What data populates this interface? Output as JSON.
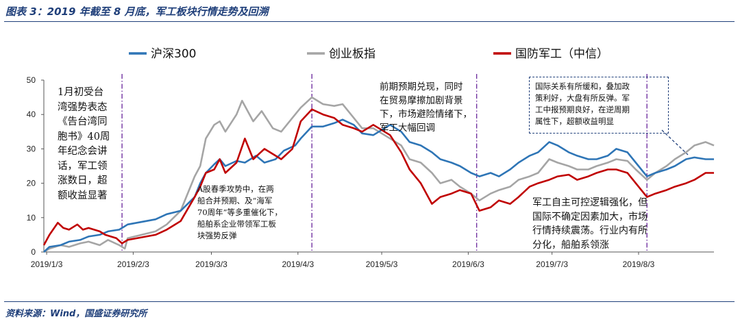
{
  "title": "图表 3：2019 年截至 8 月底，军工板块行情走势及回溯",
  "source": "资料来源：Wind，国盛证券研究所",
  "colors": {
    "hs300": "#2e75b6",
    "cyb": "#a5a5a5",
    "jungong": "#c00000",
    "accent": "#1f3f7a",
    "vline": "#7030a0"
  },
  "chart_data": {
    "type": "line",
    "title": "",
    "xlabel": "",
    "ylabel": "",
    "ylim": [
      0,
      50
    ],
    "yticks": [
      0,
      10,
      20,
      30,
      40,
      50
    ],
    "xlim": [
      "2019-01-02",
      "2019-08-30"
    ],
    "xticks": [
      {
        "label": "2019/1/3",
        "date": "2019-01-03"
      },
      {
        "label": "2019/2/3",
        "date": "2019-02-03"
      },
      {
        "label": "2019/3/3",
        "date": "2019-03-03"
      },
      {
        "label": "2019/4/3",
        "date": "2019-04-03"
      },
      {
        "label": "2019/5/3",
        "date": "2019-05-03"
      },
      {
        "label": "2019/6/3",
        "date": "2019-06-03"
      },
      {
        "label": "2019/7/3",
        "date": "2019-07-03"
      },
      {
        "label": "2019/8/3",
        "date": "2019-08-03"
      }
    ],
    "grid": false,
    "legend_position": "top",
    "event_lines": [
      "2019-01-30",
      "2019-04-08",
      "2019-06-06",
      "2019-08-06"
    ],
    "series": [
      {
        "name": "沪深300",
        "color": "#2e75b6",
        "points": [
          [
            "2019-01-02",
            0
          ],
          [
            "2019-01-04",
            1.5
          ],
          [
            "2019-01-08",
            2
          ],
          [
            "2019-01-11",
            3
          ],
          [
            "2019-01-15",
            3.5
          ],
          [
            "2019-01-18",
            4.5
          ],
          [
            "2019-01-22",
            5
          ],
          [
            "2019-01-25",
            6
          ],
          [
            "2019-01-29",
            6.5
          ],
          [
            "2019-01-31",
            7.5
          ],
          [
            "2019-02-01",
            8
          ],
          [
            "2019-02-11",
            9.5
          ],
          [
            "2019-02-15",
            11
          ],
          [
            "2019-02-20",
            12
          ],
          [
            "2019-02-25",
            16
          ],
          [
            "2019-02-27",
            20
          ],
          [
            "2019-03-01",
            23
          ],
          [
            "2019-03-04",
            25.5
          ],
          [
            "2019-03-06",
            27
          ],
          [
            "2019-03-08",
            25
          ],
          [
            "2019-03-12",
            26.5
          ],
          [
            "2019-03-15",
            26
          ],
          [
            "2019-03-19",
            28
          ],
          [
            "2019-03-22",
            26
          ],
          [
            "2019-03-26",
            27
          ],
          [
            "2019-03-29",
            29.5
          ],
          [
            "2019-04-02",
            31
          ],
          [
            "2019-04-04",
            33
          ],
          [
            "2019-04-08",
            36.5
          ],
          [
            "2019-04-12",
            36.5
          ],
          [
            "2019-04-16",
            37.5
          ],
          [
            "2019-04-19",
            38.5
          ],
          [
            "2019-04-23",
            37
          ],
          [
            "2019-04-26",
            34.5
          ],
          [
            "2019-04-30",
            34
          ],
          [
            "2019-05-06",
            37
          ],
          [
            "2019-05-10",
            35
          ],
          [
            "2019-05-13",
            32
          ],
          [
            "2019-05-17",
            31
          ],
          [
            "2019-05-21",
            29
          ],
          [
            "2019-05-24",
            27
          ],
          [
            "2019-05-28",
            26
          ],
          [
            "2019-05-31",
            25
          ],
          [
            "2019-06-04",
            23
          ],
          [
            "2019-06-07",
            22
          ],
          [
            "2019-06-11",
            23
          ],
          [
            "2019-06-14",
            22
          ],
          [
            "2019-06-18",
            24
          ],
          [
            "2019-06-21",
            26
          ],
          [
            "2019-06-25",
            28
          ],
          [
            "2019-06-28",
            29
          ],
          [
            "2019-07-02",
            32
          ],
          [
            "2019-07-05",
            31
          ],
          [
            "2019-07-09",
            29
          ],
          [
            "2019-07-12",
            28
          ],
          [
            "2019-07-16",
            27
          ],
          [
            "2019-07-19",
            27
          ],
          [
            "2019-07-23",
            28
          ],
          [
            "2019-07-26",
            30
          ],
          [
            "2019-07-30",
            29
          ],
          [
            "2019-08-02",
            26
          ],
          [
            "2019-08-06",
            22
          ],
          [
            "2019-08-09",
            23
          ],
          [
            "2019-08-13",
            24
          ],
          [
            "2019-08-16",
            25
          ],
          [
            "2019-08-20",
            27
          ],
          [
            "2019-08-23",
            27.5
          ],
          [
            "2019-08-27",
            27
          ],
          [
            "2019-08-30",
            27
          ]
        ]
      },
      {
        "name": "创业板指",
        "color": "#a5a5a5",
        "points": [
          [
            "2019-01-02",
            0
          ],
          [
            "2019-01-04",
            1
          ],
          [
            "2019-01-08",
            2
          ],
          [
            "2019-01-11",
            1.5
          ],
          [
            "2019-01-15",
            2.5
          ],
          [
            "2019-01-18",
            3
          ],
          [
            "2019-01-22",
            2
          ],
          [
            "2019-01-25",
            3.5
          ],
          [
            "2019-01-29",
            2
          ],
          [
            "2019-01-31",
            1
          ],
          [
            "2019-02-01",
            4
          ],
          [
            "2019-02-11",
            6
          ],
          [
            "2019-02-15",
            8
          ],
          [
            "2019-02-20",
            12
          ],
          [
            "2019-02-25",
            22
          ],
          [
            "2019-02-27",
            25
          ],
          [
            "2019-03-01",
            33
          ],
          [
            "2019-03-04",
            37
          ],
          [
            "2019-03-06",
            38
          ],
          [
            "2019-03-08",
            35
          ],
          [
            "2019-03-12",
            40
          ],
          [
            "2019-03-14",
            44
          ],
          [
            "2019-03-18",
            38
          ],
          [
            "2019-03-21",
            41
          ],
          [
            "2019-03-25",
            36
          ],
          [
            "2019-03-28",
            35
          ],
          [
            "2019-04-01",
            39
          ],
          [
            "2019-04-04",
            42
          ],
          [
            "2019-04-08",
            45
          ],
          [
            "2019-04-12",
            43
          ],
          [
            "2019-04-16",
            42.5
          ],
          [
            "2019-04-19",
            43
          ],
          [
            "2019-04-23",
            39
          ],
          [
            "2019-04-26",
            36
          ],
          [
            "2019-04-30",
            36
          ],
          [
            "2019-05-06",
            33
          ],
          [
            "2019-05-10",
            31
          ],
          [
            "2019-05-13",
            27
          ],
          [
            "2019-05-17",
            26
          ],
          [
            "2019-05-21",
            23
          ],
          [
            "2019-05-24",
            20
          ],
          [
            "2019-05-28",
            21
          ],
          [
            "2019-05-31",
            19
          ],
          [
            "2019-06-04",
            17
          ],
          [
            "2019-06-07",
            15
          ],
          [
            "2019-06-11",
            17
          ],
          [
            "2019-06-14",
            18
          ],
          [
            "2019-06-18",
            19
          ],
          [
            "2019-06-21",
            21
          ],
          [
            "2019-06-25",
            22
          ],
          [
            "2019-06-28",
            23
          ],
          [
            "2019-07-02",
            27
          ],
          [
            "2019-07-05",
            26
          ],
          [
            "2019-07-09",
            25
          ],
          [
            "2019-07-12",
            24
          ],
          [
            "2019-07-16",
            24
          ],
          [
            "2019-07-19",
            25
          ],
          [
            "2019-07-23",
            26
          ],
          [
            "2019-07-26",
            27
          ],
          [
            "2019-07-30",
            26.5
          ],
          [
            "2019-08-02",
            24
          ],
          [
            "2019-08-06",
            21
          ],
          [
            "2019-08-09",
            23
          ],
          [
            "2019-08-13",
            25
          ],
          [
            "2019-08-16",
            27
          ],
          [
            "2019-08-20",
            29
          ],
          [
            "2019-08-23",
            31
          ],
          [
            "2019-08-27",
            32
          ],
          [
            "2019-08-30",
            31
          ]
        ]
      },
      {
        "name": "国防军工（中信）",
        "color": "#c00000",
        "points": [
          [
            "2019-01-02",
            2
          ],
          [
            "2019-01-04",
            5
          ],
          [
            "2019-01-07",
            8.5
          ],
          [
            "2019-01-09",
            7
          ],
          [
            "2019-01-11",
            6.5
          ],
          [
            "2019-01-14",
            8
          ],
          [
            "2019-01-16",
            6.5
          ],
          [
            "2019-01-18",
            7
          ],
          [
            "2019-01-22",
            6
          ],
          [
            "2019-01-24",
            5
          ],
          [
            "2019-01-28",
            4
          ],
          [
            "2019-01-30",
            2.5
          ],
          [
            "2019-02-01",
            3.5
          ],
          [
            "2019-02-11",
            5
          ],
          [
            "2019-02-15",
            6.5
          ],
          [
            "2019-02-20",
            9
          ],
          [
            "2019-02-25",
            16
          ],
          [
            "2019-02-27",
            19
          ],
          [
            "2019-03-01",
            23
          ],
          [
            "2019-03-04",
            24
          ],
          [
            "2019-03-06",
            27
          ],
          [
            "2019-03-08",
            23
          ],
          [
            "2019-03-12",
            26
          ],
          [
            "2019-03-15",
            33
          ],
          [
            "2019-03-18",
            27
          ],
          [
            "2019-03-22",
            30
          ],
          [
            "2019-03-26",
            28
          ],
          [
            "2019-03-28",
            27
          ],
          [
            "2019-04-01",
            30
          ],
          [
            "2019-04-04",
            38
          ],
          [
            "2019-04-08",
            41.5
          ],
          [
            "2019-04-12",
            40
          ],
          [
            "2019-04-16",
            39
          ],
          [
            "2019-04-19",
            37
          ],
          [
            "2019-04-23",
            36
          ],
          [
            "2019-04-26",
            35
          ],
          [
            "2019-04-30",
            37
          ],
          [
            "2019-05-06",
            34
          ],
          [
            "2019-05-10",
            29
          ],
          [
            "2019-05-13",
            24
          ],
          [
            "2019-05-17",
            20
          ],
          [
            "2019-05-21",
            14
          ],
          [
            "2019-05-24",
            16
          ],
          [
            "2019-05-28",
            17
          ],
          [
            "2019-05-31",
            18
          ],
          [
            "2019-06-04",
            17
          ],
          [
            "2019-06-07",
            12
          ],
          [
            "2019-06-11",
            13
          ],
          [
            "2019-06-14",
            15
          ],
          [
            "2019-06-18",
            14
          ],
          [
            "2019-06-21",
            16
          ],
          [
            "2019-06-25",
            19
          ],
          [
            "2019-06-28",
            20
          ],
          [
            "2019-07-02",
            21
          ],
          [
            "2019-07-05",
            22
          ],
          [
            "2019-07-09",
            22.5
          ],
          [
            "2019-07-12",
            21
          ],
          [
            "2019-07-16",
            22
          ],
          [
            "2019-07-19",
            23
          ],
          [
            "2019-07-23",
            24
          ],
          [
            "2019-07-26",
            24
          ],
          [
            "2019-07-30",
            23
          ],
          [
            "2019-08-02",
            20
          ],
          [
            "2019-08-06",
            16
          ],
          [
            "2019-08-09",
            17
          ],
          [
            "2019-08-13",
            18
          ],
          [
            "2019-08-16",
            19
          ],
          [
            "2019-08-20",
            20
          ],
          [
            "2019-08-23",
            21
          ],
          [
            "2019-08-27",
            23
          ],
          [
            "2019-08-30",
            23
          ]
        ]
      }
    ]
  },
  "annotations": [
    {
      "id": "jan",
      "lines": [
        "1月初受台",
        "湾强势表态",
        "《告台湾同",
        "胞书》40周",
        "年纪念会讲",
        "话，军工领",
        "涨数日，超",
        "额收益显著"
      ]
    },
    {
      "id": "mar",
      "lines": [
        "A股春季攻势中，在两",
        "船合并预期、及“海军",
        "70周年”等多重催化下，",
        "船舶系企业带领军工板",
        "块强势反弹"
      ]
    },
    {
      "id": "apr",
      "lines": [
        "前期预期兑现，同时",
        "在贸易摩擦加剧背景",
        "下，市场避险情绪下，",
        "军工大幅回调"
      ]
    },
    {
      "id": "jun",
      "lines": [
        "军工自主可控逻辑强化，但",
        "国际不确定因素加大，市场",
        "行情持续震荡。行业内有所",
        "分化，船舶系领涨"
      ]
    },
    {
      "id": "aug",
      "lines": [
        "国际关系有所缓和，叠加政",
        "策利好，大盘有所反弹。军",
        "工中报预期良好，在逆周期",
        "属性下，超额收益明显"
      ]
    }
  ]
}
